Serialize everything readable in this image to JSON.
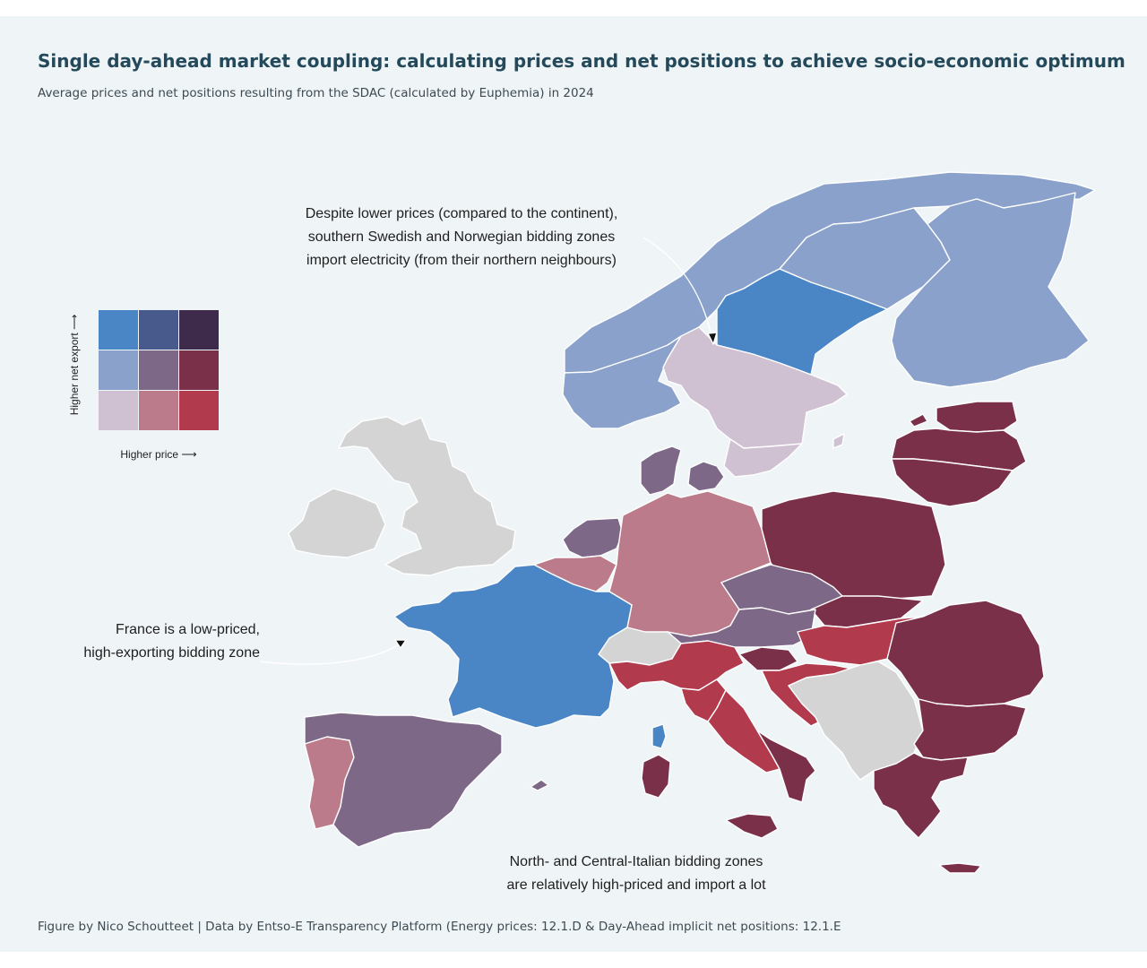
{
  "header": {
    "title": "Single day-ahead market coupling: calculating prices and net positions to achieve socio-economic optimum",
    "subtitle": "Average prices and net positions resulting from the SDAC (calculated by Euphemia) in 2024"
  },
  "footer": {
    "credit": "Figure by Nico Schoutteet | Data by Entso-E Transparency Platform (Energy prices: 12.1.D & Day-Ahead implicit net positions: 12.1.E"
  },
  "legend": {
    "y_label": "Higher net export ⟶",
    "x_label": "Higher price ⟶",
    "grid_colors": [
      [
        "#4a86c6",
        "#485a8c",
        "#3e2a4b"
      ],
      [
        "#8aa1cb",
        "#7e6888",
        "#7a3048"
      ],
      [
        "#cfc0d2",
        "#bc7b8b",
        "#b23a4d"
      ]
    ]
  },
  "annotations": {
    "nordic": [
      "Despite lower prices (compared to the continent),",
      "southern Swedish and Norwegian bidding zones",
      "import electricity (from their northern neighbours)"
    ],
    "france": [
      "France is a low-priced,",
      "high-exporting bidding zone"
    ],
    "italy": [
      "North- and Central-Italian bidding zones",
      "are relatively high-priced and import a lot"
    ]
  },
  "map_colors": {
    "no_data": "#d4d4d4",
    "low_price_high_export": "#4a86c6",
    "low_price_mid_export": "#8aa1cb",
    "low_price_low_export": "#cfc0d2",
    "mid_price_mid_export": "#7e6888",
    "mid_price_low_export": "#bc7b8b",
    "high_price_mid_export": "#7a3048",
    "high_price_low_export": "#b23a4d"
  }
}
